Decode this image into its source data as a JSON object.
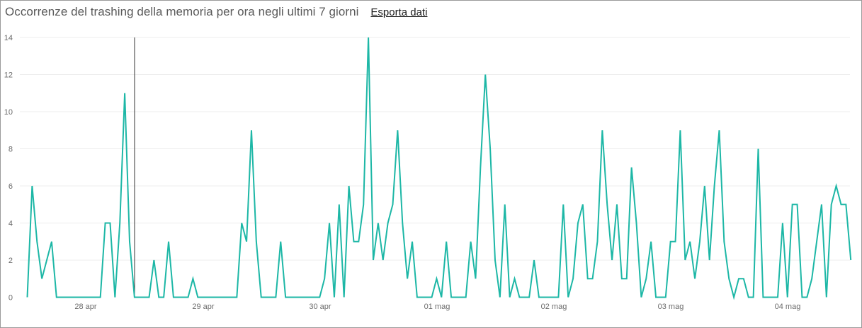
{
  "header": {
    "title": "Occorrenze del trashing della memoria per ora negli ultimi 7 giorni",
    "export_label": "Esporta dati"
  },
  "colors": {
    "series": "#1db7a6",
    "cursor": "#333333",
    "grid": "#ececec"
  },
  "chart_data": {
    "type": "line",
    "title": "Occorrenze del trashing della memoria per ora negli ultimi 7 giorni",
    "x_tick_labels": [
      "28 apr",
      "29 apr",
      "30 apr",
      "01 mag",
      "02 mag",
      "03 mag",
      "04 mag"
    ],
    "y_ticks": [
      0,
      2,
      4,
      6,
      8,
      10,
      12,
      14
    ],
    "ylim": [
      0,
      14
    ],
    "grid": "horizontal",
    "series": [
      {
        "values": [
          0,
          6,
          3,
          1,
          2,
          3,
          0,
          0,
          0,
          0,
          0,
          0,
          0,
          0,
          0,
          0,
          4,
          4,
          0,
          4,
          11,
          3,
          0,
          0,
          0,
          0,
          2,
          0,
          0,
          3,
          0,
          0,
          0,
          0,
          1,
          0,
          0,
          0,
          0,
          0,
          0,
          0,
          0,
          0,
          4,
          3,
          9,
          3,
          0,
          0,
          0,
          0,
          3,
          0,
          0,
          0,
          0,
          0,
          0,
          0,
          0,
          1,
          4,
          0,
          5,
          0,
          6,
          3,
          3,
          5,
          14,
          2,
          4,
          2,
          4,
          5,
          9,
          4,
          1,
          3,
          0,
          0,
          0,
          0,
          1,
          0,
          3,
          0,
          0,
          0,
          0,
          3,
          1,
          7,
          12,
          8,
          2,
          0,
          5,
          0,
          1,
          0,
          0,
          0,
          2,
          0,
          0,
          0,
          0,
          0,
          5,
          0,
          1,
          4,
          5,
          1,
          1,
          3,
          9,
          5,
          2,
          5,
          1,
          1,
          7,
          4,
          0,
          1,
          3,
          0,
          0,
          0,
          3,
          3,
          9,
          2,
          3,
          1,
          3,
          6,
          2,
          6,
          9,
          3,
          1,
          0,
          1,
          1,
          0,
          0,
          8,
          0,
          0,
          0,
          0,
          4,
          0,
          5,
          5,
          0,
          0,
          1,
          3,
          5,
          0,
          5,
          6,
          5,
          5,
          2
        ]
      }
    ]
  }
}
